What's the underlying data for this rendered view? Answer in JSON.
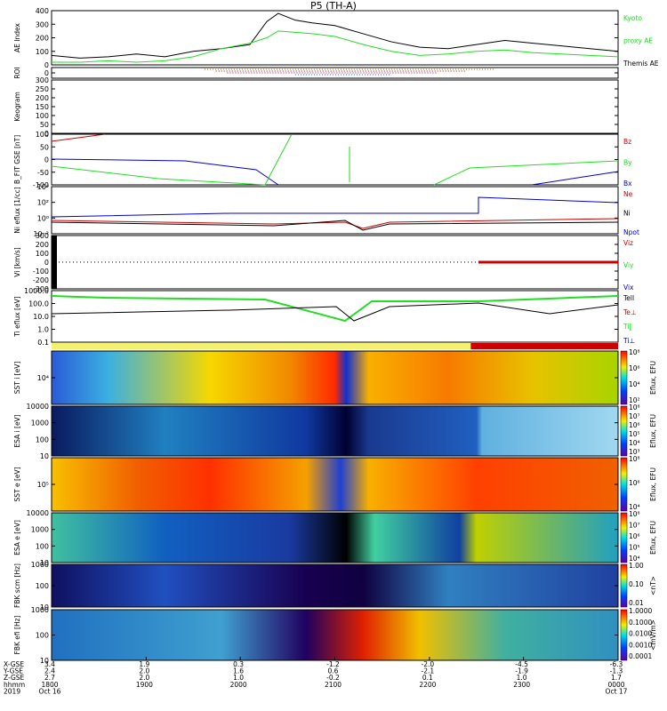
{
  "title": "P5 (TH-A)",
  "colors": {
    "red": "#cc0000",
    "green": "#22dd22",
    "blue": "#0000cc",
    "black": "#000000"
  },
  "chart_data": [
    {
      "type": "line",
      "panel": "ae",
      "ylabel": "AE Index",
      "ylim": [
        0,
        400
      ],
      "yticks": [
        "400",
        "300",
        "200",
        "100",
        "0"
      ],
      "legend": [
        {
          "name": "Kyoto",
          "color": "green"
        },
        {
          "name": "proxy AE",
          "color": "green"
        },
        {
          "name": "Themis AE",
          "color": "black"
        }
      ],
      "series": [
        {
          "name": "Themis AE",
          "color": "black",
          "x": [
            0,
            0.05,
            0.1,
            0.15,
            0.2,
            0.25,
            0.3,
            0.35,
            0.38,
            0.4,
            0.43,
            0.46,
            0.5,
            0.55,
            0.6,
            0.65,
            0.7,
            0.75,
            0.8,
            0.85,
            0.9,
            0.95,
            1.0
          ],
          "values": [
            70,
            50,
            60,
            80,
            60,
            100,
            120,
            150,
            320,
            380,
            330,
            310,
            290,
            230,
            170,
            130,
            120,
            150,
            180,
            160,
            140,
            120,
            100
          ]
        },
        {
          "name": "Kyoto proxy AE",
          "color": "green",
          "x": [
            0,
            0.05,
            0.1,
            0.15,
            0.2,
            0.25,
            0.3,
            0.35,
            0.38,
            0.4,
            0.43,
            0.46,
            0.5,
            0.55,
            0.6,
            0.65,
            0.7,
            0.75,
            0.8,
            0.85,
            0.9,
            0.95,
            1.0
          ],
          "values": [
            20,
            20,
            30,
            20,
            30,
            60,
            120,
            160,
            200,
            250,
            240,
            230,
            210,
            150,
            100,
            70,
            80,
            100,
            110,
            90,
            80,
            70,
            60
          ]
        }
      ]
    },
    {
      "type": "line",
      "panel": "roi",
      "ylabel": "ROI",
      "yticks": [
        "0"
      ]
    },
    {
      "type": "line",
      "panel": "keogram",
      "ylabel": "Keogram",
      "ylim": [
        0,
        300
      ],
      "yticks": [
        "300",
        "250",
        "200",
        "150",
        "100",
        "50",
        "0"
      ]
    },
    {
      "type": "line",
      "panel": "bfit",
      "ylabel": "B_FIT GSE [nT]",
      "ylim": [
        -100,
        100
      ],
      "yticks": [
        "100",
        "50",
        "0",
        "-50",
        "-100"
      ],
      "legend": [
        {
          "name": "Bz",
          "color": "red"
        },
        {
          "name": "By",
          "color": "green"
        },
        {
          "name": "Bx",
          "color": "blue"
        }
      ]
    },
    {
      "type": "line",
      "panel": "ni",
      "ylabel": "Ni eflux [1/cc]",
      "yticks": [
        "10⁴",
        "10²",
        "10⁰",
        "10⁻²"
      ],
      "legend": [
        {
          "name": "Ne",
          "color": "red"
        },
        {
          "name": "Ni",
          "color": "black"
        },
        {
          "name": "Npot",
          "color": "blue"
        }
      ]
    },
    {
      "type": "line",
      "panel": "vi",
      "ylabel": "Vi [km/s]",
      "ylim": [
        -300,
        300
      ],
      "yticks": [
        "300",
        "200",
        "100",
        "0",
        "-100",
        "-200",
        "-300"
      ],
      "legend": [
        {
          "name": "Viz",
          "color": "red"
        },
        {
          "name": "Viy",
          "color": "green"
        },
        {
          "name": "Vix",
          "color": "blue"
        }
      ]
    },
    {
      "type": "line",
      "panel": "ti",
      "ylabel": "Ti eflux [eV]",
      "yticks": [
        "1000.0",
        "100.0",
        "10.0",
        "1.0",
        "0.1"
      ],
      "legend": [
        {
          "name": "Tell",
          "color": "black"
        },
        {
          "name": "Te⊥",
          "color": "red"
        },
        {
          "name": "Ti‖",
          "color": "green"
        },
        {
          "name": "Ti⊥",
          "color": "blue"
        }
      ]
    },
    {
      "type": "heatmap",
      "panel": "sst_i",
      "ylabel": "SST i [eV]",
      "yticks": [
        "10⁴"
      ],
      "colorbar": "Eflux, EFU",
      "cticks": [
        "10⁸",
        "10⁶",
        "10⁴",
        "10²"
      ]
    },
    {
      "type": "heatmap",
      "panel": "esa_i",
      "ylabel": "ESA i [eV]",
      "yticks": [
        "10000",
        "1000",
        "100",
        "10"
      ],
      "colorbar": "Eflux, EFU",
      "cticks": [
        "10⁸",
        "10⁷",
        "10⁶",
        "10⁵",
        "10⁴",
        "10³"
      ]
    },
    {
      "type": "heatmap",
      "panel": "sst_e",
      "ylabel": "SST e [eV]",
      "yticks": [
        "10⁵"
      ],
      "colorbar": "Eflux, EFU",
      "cticks": [
        "10⁸",
        "10⁶",
        "10⁴"
      ]
    },
    {
      "type": "heatmap",
      "panel": "esa_e",
      "ylabel": "ESA e [eV]",
      "yticks": [
        "10000",
        "1000",
        "100",
        "10"
      ],
      "colorbar": "Eflux, EFU",
      "cticks": [
        "10⁸",
        "10⁷",
        "10⁶",
        "10⁵",
        "10⁴"
      ]
    },
    {
      "type": "heatmap",
      "panel": "fbk_b",
      "ylabel": "FBK scm [Hz]",
      "yticks": [
        "1000",
        "100",
        "10"
      ],
      "colorbar": "<nT>",
      "cticks": [
        "1.00",
        "0.10",
        "0.01"
      ]
    },
    {
      "type": "heatmap",
      "panel": "fbk_e",
      "ylabel": "FBK efi [Hz]",
      "yticks": [
        "1000",
        "100",
        "10"
      ],
      "colorbar": "<mV/m>",
      "cticks": [
        "1.0000",
        "0.1000",
        "0.0100",
        "0.0010",
        "0.0001"
      ]
    }
  ],
  "time_axis": {
    "rows": [
      {
        "label": "X-GSE",
        "values": [
          "3.4",
          "1.9",
          "0.3",
          "-1.2",
          "-2.0",
          "-4.5",
          "-6.3"
        ]
      },
      {
        "label": "Y-GSE",
        "values": [
          "2.4",
          "2.0",
          "1.6",
          "0.6",
          "-2.1",
          "-1.9",
          "-1.3"
        ]
      },
      {
        "label": "Z-GSE",
        "values": [
          "2.7",
          "2.0",
          "1.0",
          "-0.2",
          "0.1",
          "1.0",
          "1.7"
        ]
      },
      {
        "label": "hhmm",
        "values": [
          "1800",
          "1900",
          "2000",
          "2100",
          "2200",
          "2300",
          "0000"
        ]
      },
      {
        "label": "2019",
        "values": [
          "Oct 16",
          "",
          "",
          "",
          "",
          "",
          "Oct 17"
        ]
      }
    ]
  }
}
